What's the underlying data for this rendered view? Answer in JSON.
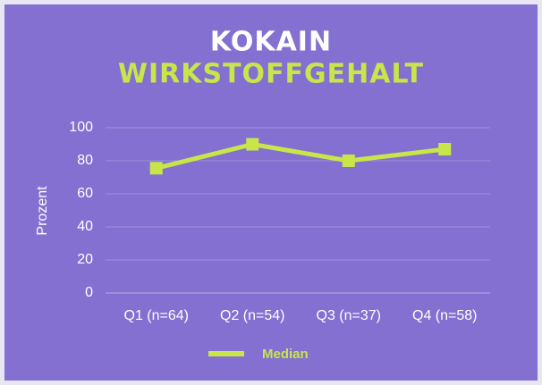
{
  "chart_data": {
    "type": "line",
    "title": [
      "KOKAIN",
      "WIRKSTOFFGEHALT"
    ],
    "title_colors": [
      "#ffffff",
      "#c8e64a"
    ],
    "ylabel": "Prozent",
    "categories": [
      "Q1 (n=64)",
      "Q2 (n=54)",
      "Q3 (n=37)",
      "Q4 (n=58)"
    ],
    "series": [
      {
        "name": "Median",
        "color": "#c8e64a",
        "values": [
          75.5,
          90,
          80,
          87
        ]
      }
    ],
    "ylim": [
      0,
      100
    ],
    "yticks": [
      0,
      20,
      40,
      60,
      80,
      100
    ],
    "grid": true,
    "legend": "bottom"
  }
}
